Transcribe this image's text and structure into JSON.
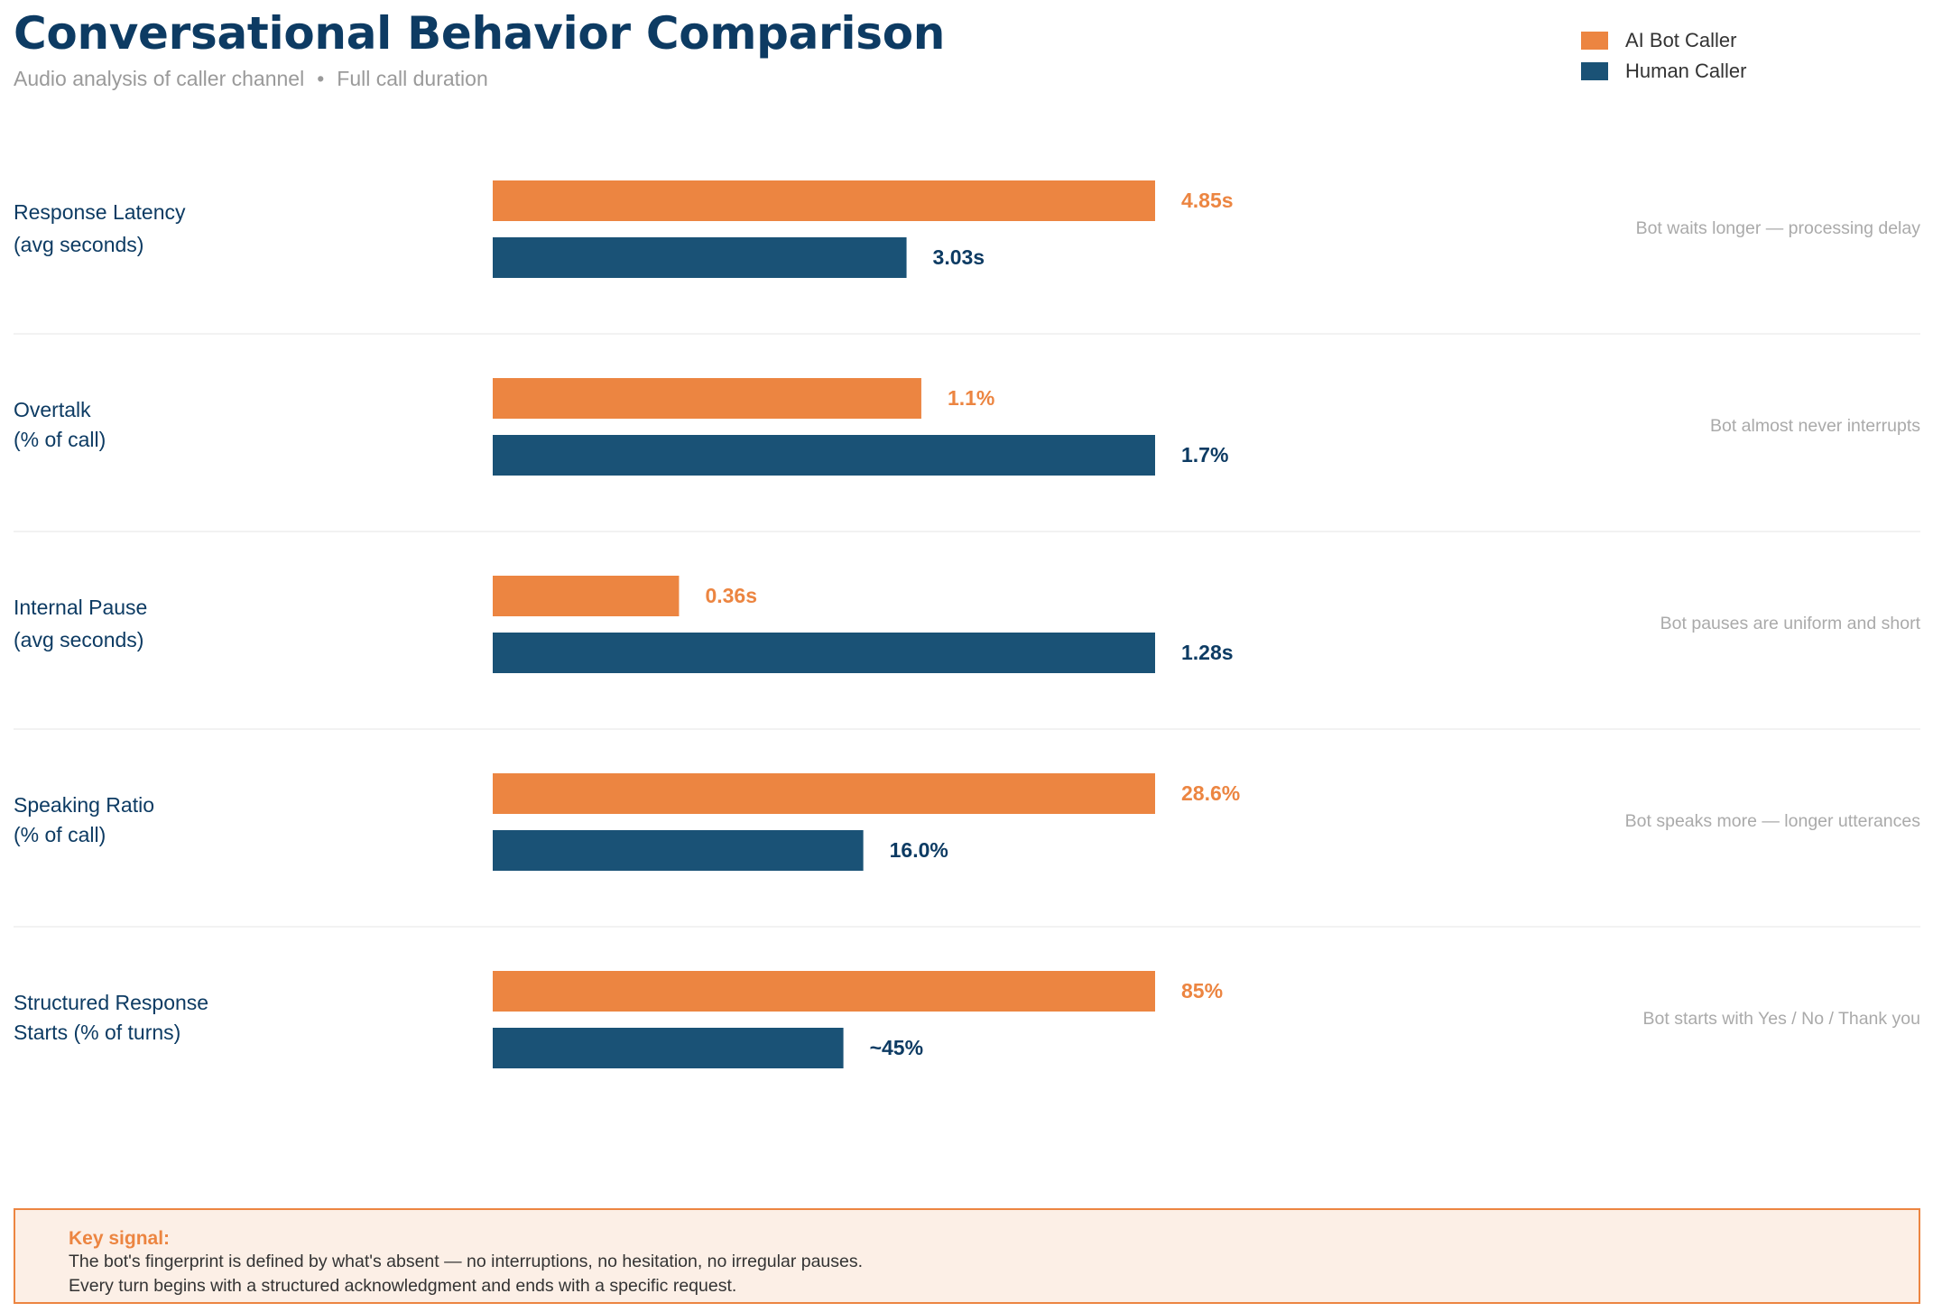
{
  "chart_data": {
    "type": "bar",
    "orientation": "horizontal",
    "title": "Conversational Behavior Comparison",
    "subtitle": [
      "Audio analysis of caller channel",
      "Full call duration"
    ],
    "subtitle_separator": "•",
    "series": [
      {
        "name": "AI Bot Caller",
        "color": "#ec8541"
      },
      {
        "name": "Human Caller",
        "color": "#1a5276"
      }
    ],
    "legend_position": "top-right",
    "grid": false,
    "bar_scaling": "normalized per metric to the larger value",
    "metrics": [
      {
        "label_lines": [
          "Response Latency",
          "(avg seconds)"
        ],
        "values": [
          4.85,
          3.03
        ],
        "value_labels": [
          "4.85s",
          "3.03s"
        ],
        "note": "Bot waits longer — processing delay"
      },
      {
        "label_lines": [
          "Overtalk",
          "(% of call)"
        ],
        "values": [
          1.1,
          1.7
        ],
        "value_labels": [
          "1.1%",
          "1.7%"
        ],
        "note": "Bot almost never interrupts"
      },
      {
        "label_lines": [
          "Internal Pause",
          "(avg seconds)"
        ],
        "values": [
          0.36,
          1.28
        ],
        "value_labels": [
          "0.36s",
          "1.28s"
        ],
        "note": "Bot pauses are uniform and short"
      },
      {
        "label_lines": [
          "Speaking Ratio",
          "(% of call)"
        ],
        "values": [
          28.6,
          16.0
        ],
        "value_labels": [
          "28.6%",
          "16.0%"
        ],
        "note": "Bot speaks more — longer utterances"
      },
      {
        "label_lines": [
          "Structured Response",
          "Starts (% of turns)"
        ],
        "values": [
          85,
          45
        ],
        "value_labels": [
          "85%",
          "~45%"
        ],
        "note": "Bot starts with Yes / No / Thank you"
      }
    ]
  },
  "callout": {
    "title": "Key signal:",
    "lines": [
      "The bot's fingerprint is defined by what's absent — no interruptions, no hesitation, no irregular pauses.",
      "Every turn begins with a structured acknowledgment and ends with a specific request."
    ]
  }
}
